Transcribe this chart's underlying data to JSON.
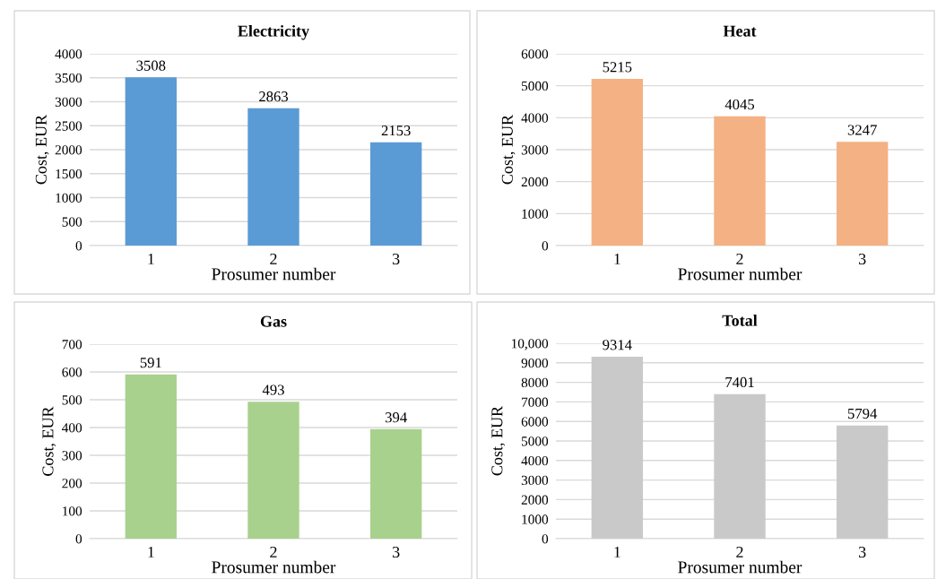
{
  "chart_data": [
    {
      "type": "bar",
      "title": "Electricity",
      "xlabel": "Prosumer number",
      "ylabel": "Cost, EUR",
      "categories": [
        "1",
        "2",
        "3"
      ],
      "values": [
        3508,
        2863,
        2153
      ],
      "color": "#5b9bd5",
      "ylim": [
        0,
        4000
      ],
      "yticks": [
        0,
        500,
        1000,
        1500,
        2000,
        2500,
        3000,
        3500,
        4000
      ],
      "grid": "y",
      "data_labels": true
    },
    {
      "type": "bar",
      "title": "Heat",
      "xlabel": "Prosumer number",
      "ylabel": "Cost, EUR",
      "categories": [
        "1",
        "2",
        "3"
      ],
      "values": [
        5215,
        4045,
        3247
      ],
      "color": "#f4b183",
      "ylim": [
        0,
        6000
      ],
      "yticks": [
        0,
        1000,
        2000,
        3000,
        4000,
        5000,
        6000
      ],
      "grid": "y",
      "data_labels": true
    },
    {
      "type": "bar",
      "title": "Gas",
      "xlabel": "Prosumer number",
      "ylabel": "Cost, EUR",
      "categories": [
        "1",
        "2",
        "3"
      ],
      "values": [
        591,
        493,
        394
      ],
      "color": "#a9d18e",
      "ylim": [
        0,
        700
      ],
      "yticks": [
        0,
        100,
        200,
        300,
        400,
        500,
        600,
        700
      ],
      "grid": "y",
      "data_labels": true
    },
    {
      "type": "bar",
      "title": "Total",
      "xlabel": "Prosumer number",
      "ylabel": "Cost, EUR",
      "categories": [
        "1",
        "2",
        "3"
      ],
      "values": [
        9314,
        7401,
        5794
      ],
      "color": "#c9c9c9",
      "ylim": [
        0,
        10000
      ],
      "yticks": [
        0,
        1000,
        2000,
        3000,
        4000,
        5000,
        6000,
        7000,
        8000,
        9000,
        {
          "value": 10000,
          "label": "10,000"
        }
      ],
      "grid": "y",
      "data_labels": true
    }
  ]
}
